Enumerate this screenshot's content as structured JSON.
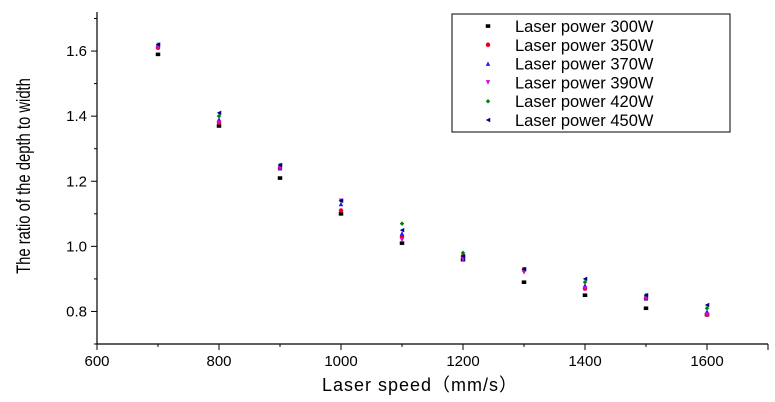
{
  "chart_data": {
    "type": "scatter",
    "xlabel": "Laser speed（mm/s）",
    "ylabel": "The ratio of the depth to width",
    "xlim": [
      600,
      1700
    ],
    "ylim": [
      0.7,
      1.72
    ],
    "x_ticks": [
      600,
      800,
      1000,
      1200,
      1400,
      1600
    ],
    "x_tick_labels": [
      "600",
      "800",
      "1000",
      "1200",
      "1400",
      "1600"
    ],
    "y_ticks": [
      0.8,
      1.0,
      1.2,
      1.4,
      1.6
    ],
    "y_tick_labels": [
      "0.8",
      "1.0",
      "1.2",
      "1.4",
      "1.6"
    ],
    "grid": false,
    "legend_position": "top-right",
    "x": [
      700,
      800,
      900,
      1000,
      1100,
      1200,
      1300,
      1400,
      1500,
      1600
    ],
    "series": [
      {
        "name": "Laser power 300W",
        "marker": "square",
        "color": "#000000",
        "values": [
          1.59,
          1.37,
          1.21,
          1.1,
          1.01,
          0.96,
          0.89,
          0.85,
          0.81,
          0.79
        ]
      },
      {
        "name": "Laser power 350W",
        "marker": "circle",
        "color": "#e8001c",
        "values": [
          1.61,
          1.38,
          1.24,
          1.11,
          1.03,
          0.97,
          0.93,
          0.87,
          0.84,
          0.79
        ]
      },
      {
        "name": "Laser power 370W",
        "marker": "triangle-up",
        "color": "#1a1aff",
        "values": [
          1.62,
          1.39,
          1.24,
          1.13,
          1.04,
          0.96,
          0.93,
          0.88,
          0.84,
          0.8
        ]
      },
      {
        "name": "Laser power 390W",
        "marker": "triangle-down",
        "color": "#e000e0",
        "values": [
          1.61,
          1.38,
          1.24,
          1.14,
          1.02,
          0.96,
          0.92,
          0.87,
          0.84,
          0.79
        ]
      },
      {
        "name": "Laser power 420W",
        "marker": "diamond",
        "color": "#008000",
        "values": [
          1.62,
          1.4,
          1.25,
          1.14,
          1.07,
          0.98,
          0.93,
          0.89,
          0.85,
          0.81
        ]
      },
      {
        "name": "Laser power 450W",
        "marker": "triangle-left",
        "color": "#000080",
        "values": [
          1.62,
          1.41,
          1.25,
          1.14,
          1.05,
          0.97,
          0.93,
          0.9,
          0.85,
          0.82
        ]
      }
    ]
  }
}
